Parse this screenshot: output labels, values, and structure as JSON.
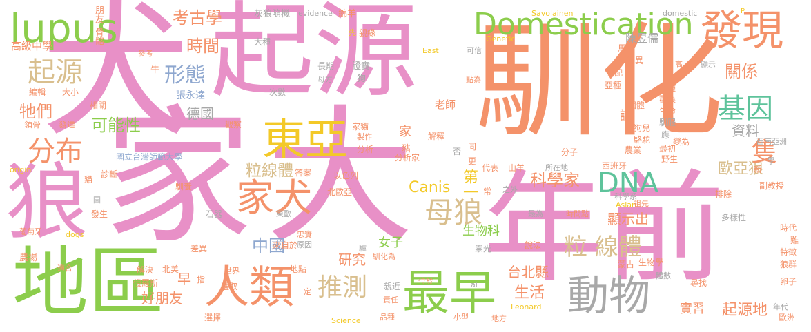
{
  "colors": {
    "pink": "#e890c7",
    "orange": "#f4926a",
    "green": "#8ccd4c",
    "yellow": "#f3c928",
    "teal": "#5ec39b",
    "gray": "#a8a8a8",
    "tan": "#d9bf8e",
    "blue": "#8ea7cf",
    "lightgray": "#c8c8c8"
  },
  "words": [
    "犬",
    "家",
    "起源",
    "馴化",
    "大",
    "年前",
    "狼",
    "地區",
    "發現",
    "Domestication",
    "lupus",
    "東亞",
    "家犬",
    "人類",
    "最早",
    "動物",
    "DNA",
    "基因",
    "母狼",
    "分布",
    "起源",
    "形態",
    "推測",
    "粒線體",
    "粒 線體",
    "歐亞狼",
    "隻",
    "科學家",
    "考古學",
    "時間",
    "關係",
    "資料",
    "牠們",
    "可能性",
    "德國",
    "中國",
    "研究",
    "早",
    "好朋友",
    "生活",
    "起源地",
    "台北縣",
    "顯示出",
    "Canis",
    "第一",
    "女子",
    "生物科",
    "實習",
    "高級中學",
    "陳昱儒",
    "張永達",
    "國立台灣師範大學",
    "北歐亞",
    "以色列",
    "答案",
    "石器",
    "葡萄牙",
    "農場",
    "俄羅斯",
    "北美",
    "選取",
    "地點",
    "來自於",
    "差異",
    "解決",
    "選擇",
    "Science",
    "dogs",
    "origin",
    "evidence",
    "Savolainen",
    "domestic",
    "East",
    "Genetic",
    "Asian",
    "Leonard",
    "al",
    "P",
    "朋友",
    "骨骼",
    "灰狼",
    "隨機",
    "綿羊",
    "參考",
    "牛",
    "編輯",
    "大小",
    "相關",
    "領骨",
    "發達",
    "觀察",
    "家貓",
    "製作",
    "分析",
    "分析家",
    "家",
    "老師",
    "長期",
    "證實",
    "母方",
    "狗",
    "次數",
    "親緣",
    "先",
    "大種",
    "可信",
    "馬",
    "變異",
    "交配",
    "亞種",
    "點為",
    "高",
    "顯示",
    "育種",
    "群集",
    "個體",
    "生命",
    "馴服",
    "應",
    "狗兒",
    "駱駝",
    "變為",
    "最初",
    "農業",
    "野生",
    "分子",
    "所在地",
    "西班牙",
    "山羊",
    "代表",
    "解釋",
    "否",
    "同",
    "更",
    "常",
    "之外",
    "排除",
    "副教授",
    "新",
    "學",
    "西南亞洲",
    "最為",
    "時間點",
    "科學系",
    "祖先",
    "多樣性",
    "時代",
    "難",
    "特徵",
    "狼群",
    "卵子",
    "尋找",
    "體數",
    "生物學",
    "蒙古",
    "說法",
    "地方",
    "小型",
    "位於",
    "責任",
    "品種",
    "親近",
    "崇光",
    "原因",
    "馴化為",
    "驢",
    "忠實",
    "東歐",
    "世界",
    "指",
    "發生",
    "圖",
    "馴養",
    "診斷",
    "貓",
    "年代",
    "歐洲",
    "適合",
    "定",
    "談",
    "豬",
    "陳昱儒"
  ]
}
